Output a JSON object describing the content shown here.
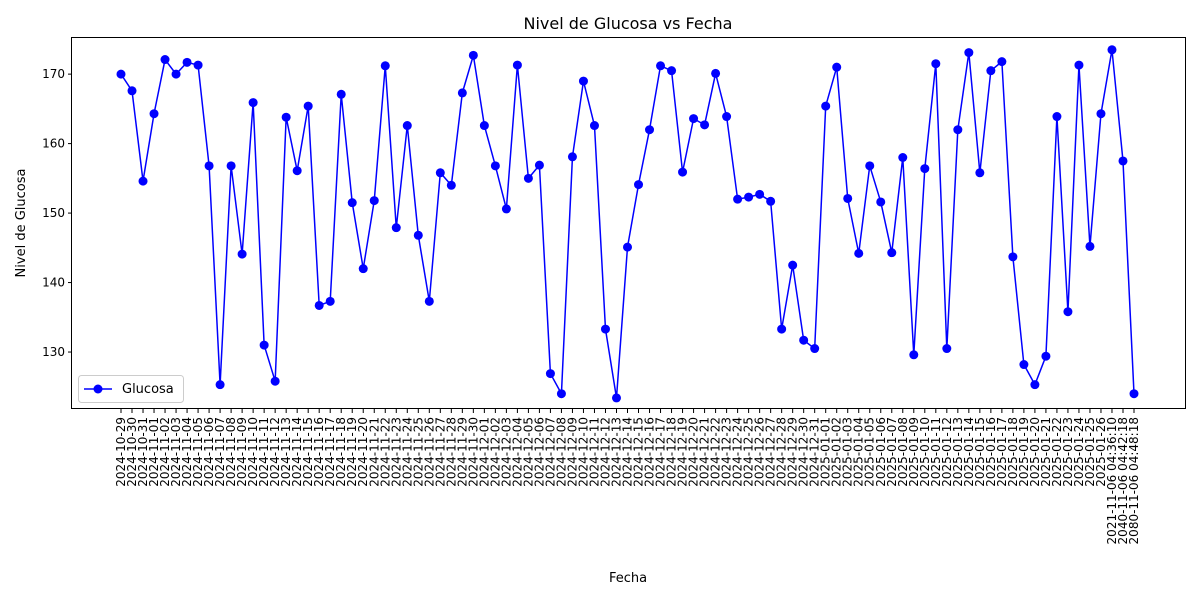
{
  "chart_data": {
    "type": "line",
    "title": "Nivel de Glucosa vs Fecha",
    "xlabel": "Fecha",
    "ylabel": "Nivel de Glucosa",
    "ylim": [
      121.8,
      175.2
    ],
    "yticks": [
      130,
      140,
      150,
      160,
      170
    ],
    "legend": "lower-left",
    "grid": false,
    "categories": [
      "2024-10-29",
      "2024-10-30",
      "2024-10-31",
      "2024-11-01",
      "2024-11-02",
      "2024-11-03",
      "2024-11-04",
      "2024-11-05",
      "2024-11-06",
      "2024-11-07",
      "2024-11-08",
      "2024-11-09",
      "2024-11-10",
      "2024-11-11",
      "2024-11-12",
      "2024-11-13",
      "2024-11-14",
      "2024-11-15",
      "2024-11-16",
      "2024-11-17",
      "2024-11-18",
      "2024-11-19",
      "2024-11-20",
      "2024-11-21",
      "2024-11-22",
      "2024-11-23",
      "2024-11-24",
      "2024-11-25",
      "2024-11-26",
      "2024-11-27",
      "2024-11-28",
      "2024-11-29",
      "2024-11-30",
      "2024-12-01",
      "2024-12-02",
      "2024-12-03",
      "2024-12-04",
      "2024-12-05",
      "2024-12-06",
      "2024-12-07",
      "2024-12-08",
      "2024-12-09",
      "2024-12-10",
      "2024-12-11",
      "2024-12-12",
      "2024-12-13",
      "2024-12-14",
      "2024-12-15",
      "2024-12-16",
      "2024-12-17",
      "2024-12-18",
      "2024-12-19",
      "2024-12-20",
      "2024-12-21",
      "2024-12-22",
      "2024-12-23",
      "2024-12-24",
      "2024-12-25",
      "2024-12-26",
      "2024-12-27",
      "2024-12-28",
      "2024-12-29",
      "2024-12-30",
      "2024-12-31",
      "2025-01-01",
      "2025-01-02",
      "2025-01-03",
      "2025-01-04",
      "2025-01-05",
      "2025-01-06",
      "2025-01-07",
      "2025-01-08",
      "2025-01-09",
      "2025-01-10",
      "2025-01-11",
      "2025-01-12",
      "2025-01-13",
      "2025-01-14",
      "2025-01-15",
      "2025-01-16",
      "2025-01-17",
      "2025-01-18",
      "2025-01-19",
      "2025-01-20",
      "2025-01-21",
      "2025-01-22",
      "2025-01-23",
      "2025-01-24",
      "2025-01-25",
      "2025-01-26",
      "2021-11-06 04:36:10",
      "2040-11-06 04:42:18",
      "2080-11-06 04:48:18"
    ],
    "series": [
      {
        "name": "Glucosa",
        "color": "#0000ff",
        "values": [
          170.0,
          167.6,
          154.6,
          164.3,
          172.1,
          170.0,
          171.7,
          171.3,
          156.8,
          125.3,
          156.8,
          144.1,
          165.9,
          131.0,
          125.8,
          163.8,
          156.1,
          165.4,
          136.7,
          137.3,
          167.1,
          151.5,
          142.0,
          151.8,
          171.2,
          147.9,
          162.6,
          146.8,
          137.3,
          155.8,
          154.0,
          167.3,
          172.7,
          162.6,
          156.8,
          150.6,
          171.3,
          155.0,
          156.9,
          126.9,
          124.0,
          158.1,
          169.0,
          162.6,
          133.3,
          123.4,
          145.1,
          154.1,
          162.0,
          171.2,
          170.5,
          155.9,
          163.6,
          162.7,
          170.1,
          163.9,
          152.0,
          152.3,
          152.7,
          151.7,
          133.3,
          142.5,
          131.7,
          130.5,
          165.4,
          171.0,
          152.1,
          144.2,
          156.8,
          151.6,
          144.3,
          158.0,
          129.6,
          156.4,
          171.5,
          130.5,
          162.0,
          173.1,
          155.8,
          170.5,
          171.8,
          143.7,
          128.2,
          125.3,
          129.4,
          163.9,
          135.8,
          171.3,
          145.2,
          164.3,
          173.5,
          157.5,
          124.0
        ]
      }
    ]
  }
}
